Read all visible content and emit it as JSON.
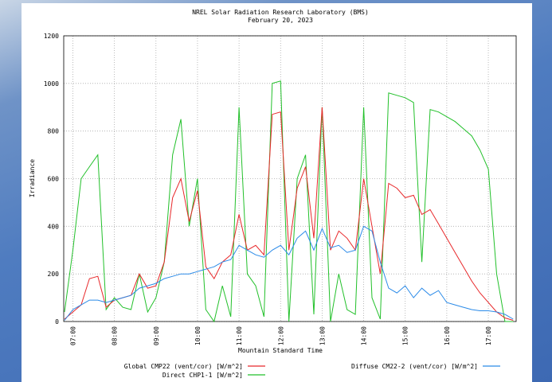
{
  "chart_data": {
    "type": "line",
    "title": "NREL Solar Radiation Research Laboratory (BMS)",
    "subtitle": "February 20, 2023",
    "x_label": "Mountain Standard Time",
    "y_label": "Irradiance",
    "x": [
      6.8,
      7.0,
      7.2,
      7.4,
      7.6,
      7.8,
      8.0,
      8.2,
      8.4,
      8.6,
      8.8,
      9.0,
      9.2,
      9.4,
      9.6,
      9.8,
      10.0,
      10.2,
      10.4,
      10.6,
      10.8,
      11.0,
      11.2,
      11.4,
      11.6,
      11.8,
      12.0,
      12.2,
      12.4,
      12.6,
      12.8,
      13.0,
      13.2,
      13.4,
      13.6,
      13.8,
      14.0,
      14.2,
      14.4,
      14.6,
      14.8,
      15.0,
      15.2,
      15.4,
      15.6,
      15.8,
      16.0,
      16.2,
      16.4,
      16.6,
      16.8,
      17.0,
      17.2,
      17.4,
      17.6
    ],
    "series": [
      {
        "name": "Global CMP22 (vent/cor) [W/m^2]",
        "color": "#e8282a",
        "values": [
          10,
          40,
          70,
          180,
          190,
          60,
          90,
          100,
          110,
          200,
          140,
          150,
          250,
          520,
          600,
          420,
          550,
          230,
          180,
          250,
          280,
          450,
          300,
          320,
          280,
          870,
          880,
          300,
          560,
          650,
          350,
          900,
          300,
          380,
          350,
          300,
          600,
          400,
          200,
          580,
          560,
          520,
          530,
          450,
          470,
          410,
          350,
          290,
          230,
          170,
          120,
          80,
          40,
          15,
          5
        ]
      },
      {
        "name": "Direct CHP1-1 [W/m^2]",
        "color": "#22c02a",
        "values": [
          40,
          300,
          600,
          650,
          700,
          50,
          100,
          60,
          50,
          200,
          40,
          100,
          250,
          700,
          850,
          400,
          600,
          50,
          0,
          150,
          20,
          900,
          200,
          150,
          20,
          1000,
          1010,
          0,
          600,
          700,
          30,
          900,
          0,
          200,
          50,
          30,
          900,
          100,
          10,
          960,
          950,
          940,
          920,
          250,
          890,
          880,
          860,
          840,
          810,
          780,
          720,
          640,
          200,
          0,
          0
        ]
      },
      {
        "name": "Diffuse CM22-2 (vent/cor) [W/m^2]",
        "color": "#2a8ae8",
        "values": [
          5,
          50,
          70,
          90,
          90,
          80,
          90,
          100,
          110,
          140,
          150,
          160,
          180,
          190,
          200,
          200,
          210,
          220,
          230,
          250,
          260,
          320,
          300,
          280,
          270,
          300,
          320,
          280,
          350,
          380,
          300,
          390,
          310,
          320,
          290,
          300,
          400,
          380,
          250,
          140,
          120,
          150,
          100,
          140,
          110,
          130,
          80,
          70,
          60,
          50,
          45,
          45,
          40,
          30,
          10
        ]
      }
    ],
    "xlim": [
      6.78,
      17.67
    ],
    "ylim": [
      0,
      1200
    ],
    "xticks": [
      {
        "value": 7,
        "label": "07:00"
      },
      {
        "value": 8,
        "label": "08:00"
      },
      {
        "value": 9,
        "label": "09:00"
      },
      {
        "value": 10,
        "label": "10:00"
      },
      {
        "value": 11,
        "label": "11:00"
      },
      {
        "value": 12,
        "label": "12:00"
      },
      {
        "value": 13,
        "label": "13:00"
      },
      {
        "value": 14,
        "label": "14:00"
      },
      {
        "value": 15,
        "label": "15:00"
      },
      {
        "value": 16,
        "label": "16:00"
      },
      {
        "value": 17,
        "label": "17:00"
      }
    ],
    "yticks": [
      0,
      200,
      400,
      600,
      800,
      1000,
      1200
    ],
    "grid": true
  }
}
